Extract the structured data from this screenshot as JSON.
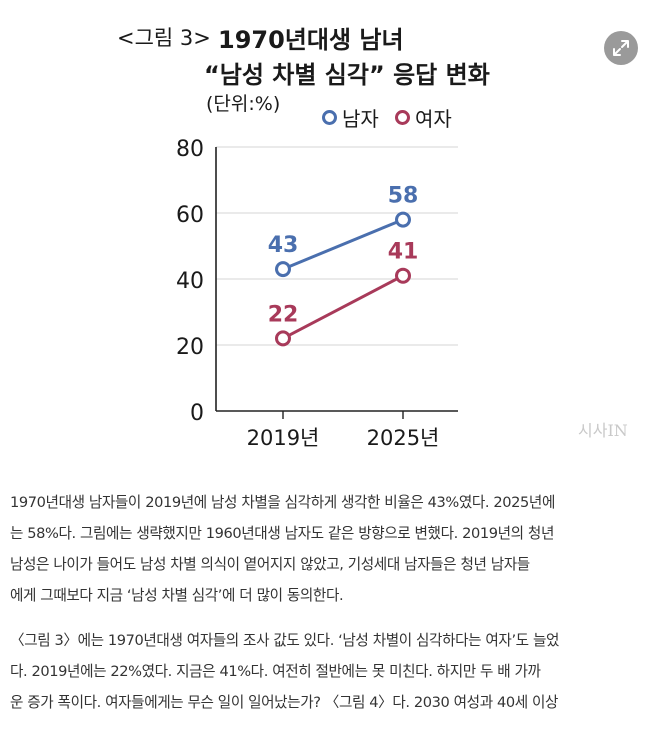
{
  "figure": {
    "title_prefix": "<그림 3>",
    "title_main": "1970년대생 남녀",
    "title_line2": "“남성 차별 심각” 응답 변화",
    "unit": "(단위:%)",
    "watermark": "시사IN",
    "expand_icon": "expand-icon"
  },
  "chart_data": {
    "type": "line",
    "categories": [
      "2019년",
      "2025년"
    ],
    "series": [
      {
        "name": "남자",
        "values": [
          43,
          58
        ],
        "color": "#4a6fae"
      },
      {
        "name": "여자",
        "values": [
          22,
          41
        ],
        "color": "#a83a5a"
      }
    ],
    "yticks": [
      "0",
      "20",
      "40",
      "60",
      "80"
    ],
    "ylim": [
      0,
      80
    ],
    "title": "1970년대생 남녀 “남성 차별 심각” 응답 변화",
    "xlabel": "",
    "ylabel": "",
    "grid": true,
    "legend_position": "top-right"
  },
  "article": {
    "paragraphs": [
      [
        "1970년대생 남자들이 2019년에 남성 차별을 심각하게 생각한 비율은 43%였다. 2025년에",
        "는 58%다. 그림에는 생략했지만 1960년대생 남자도 같은 방향으로 변했다. 2019년의 청년",
        "남성은 나이가 들어도 남성 차별 의식이 옅어지지 않았고, 기성세대 남자들은 청년 남자들",
        "에게 그때보다 지금 ‘남성 차별 심각’에 더 많이 동의한다."
      ],
      [
        "〈그림 3〉에는 1970년대생 여자들의 조사 값도 있다. ‘남성 차별이 심각하다는 여자’도 늘었",
        "다. 2019년에는 22%였다. 지금은 41%다. 여전히 절반에는 못 미친다. 하지만 두 배 가까",
        "운 증가 폭이다. 여자들에게는 무슨 일이 일어났는가? 〈그림 4〉다. 2030 여성과 40세 이상"
      ]
    ]
  }
}
